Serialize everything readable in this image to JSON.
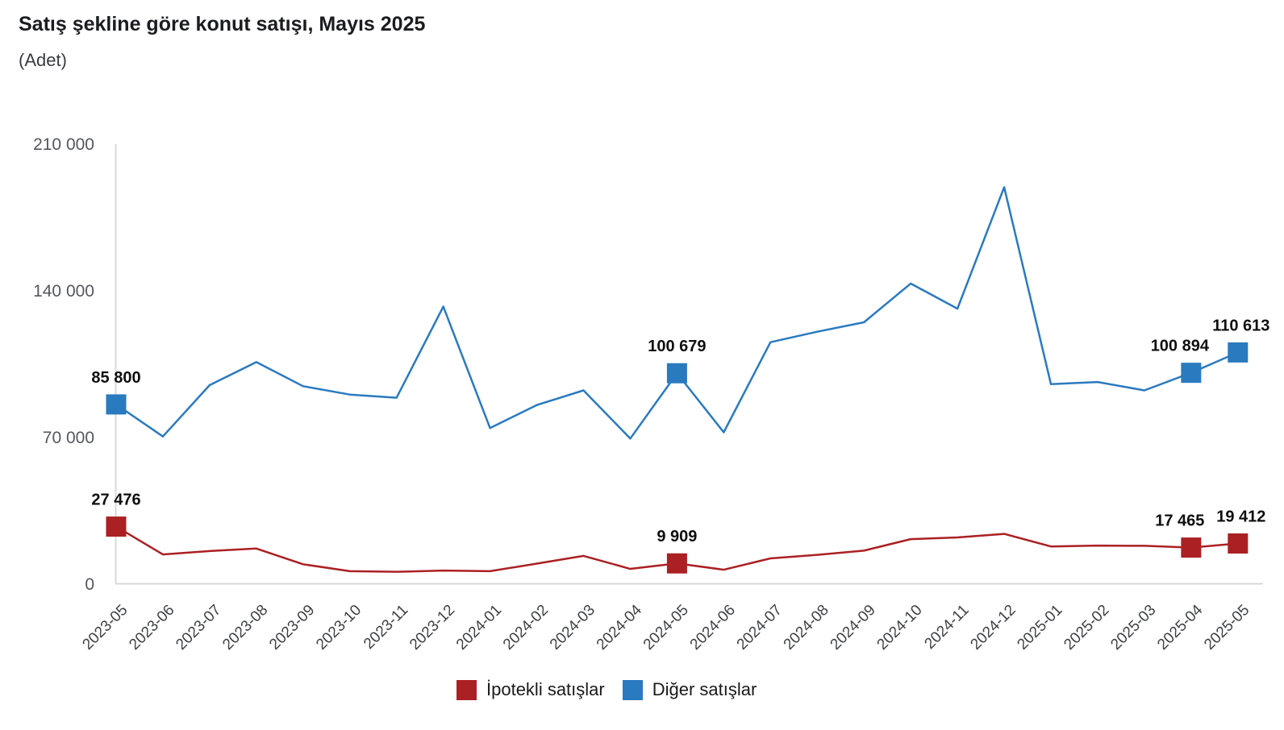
{
  "header": {
    "title": "Satış şekline göre konut satışı, Mayıs 2025",
    "unit": "(Adet)"
  },
  "chart_data": {
    "type": "line",
    "title": "Satış şekline göre konut satışı, Mayıs 2025",
    "subtitle": "(Adet)",
    "x": [
      "2023-05",
      "2023-06",
      "2023-07",
      "2023-08",
      "2023-09",
      "2023-10",
      "2023-11",
      "2023-12",
      "2024-01",
      "2024-02",
      "2024-03",
      "2024-04",
      "2024-05",
      "2024-06",
      "2024-07",
      "2024-08",
      "2024-09",
      "2024-10",
      "2024-11",
      "2024-12",
      "2025-01",
      "2025-02",
      "2025-03",
      "2025-04",
      "2025-05"
    ],
    "ylim": [
      0,
      210000
    ],
    "yticks": [
      {
        "v": 0,
        "label": "0"
      },
      {
        "v": 70000,
        "label": "70 000"
      },
      {
        "v": 140000,
        "label": "140 000"
      },
      {
        "v": 210000,
        "label": "210 000"
      }
    ],
    "grid": false,
    "legend_position": "bottom",
    "axis_color": "#d8d8d8",
    "series": [
      {
        "name": "İpotekli satışlar",
        "color": "#ab2023",
        "values": [
          27476,
          14200,
          15800,
          17000,
          9500,
          6200,
          5900,
          6500,
          6200,
          9800,
          13500,
          7300,
          9909,
          6900,
          12300,
          14000,
          16000,
          21500,
          22300,
          24000,
          18000,
          18400,
          18300,
          17465,
          19412
        ],
        "labeled_points": [
          {
            "i": 0,
            "text": "27 476"
          },
          {
            "i": 12,
            "text": "9 909"
          },
          {
            "i": 23,
            "text": "17 465"
          },
          {
            "i": 24,
            "text": "19 412"
          }
        ]
      },
      {
        "name": "Diğer satışlar",
        "color": "#2a7abf",
        "values": [
          85800,
          70500,
          95000,
          106000,
          94500,
          90500,
          89000,
          132500,
          74500,
          85500,
          92500,
          69500,
          100679,
          72500,
          115500,
          120500,
          125000,
          143500,
          131500,
          189500,
          95500,
          96500,
          92500,
          100894,
          110613
        ],
        "labeled_points": [
          {
            "i": 0,
            "text": "85 800"
          },
          {
            "i": 12,
            "text": "100 679"
          },
          {
            "i": 23,
            "text": "100 894"
          },
          {
            "i": 24,
            "text": "110 613"
          }
        ]
      }
    ]
  },
  "legend": {
    "items": [
      {
        "label": "İpotekli satışlar",
        "color": "#ab2023"
      },
      {
        "label": "Diğer satışlar",
        "color": "#2a7abf"
      }
    ]
  }
}
